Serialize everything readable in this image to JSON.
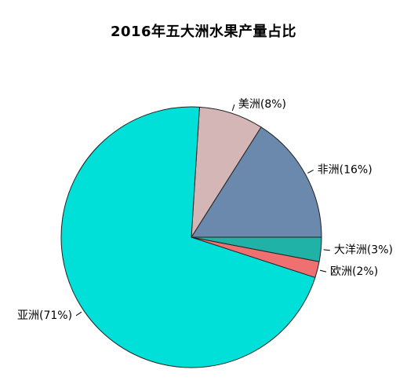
{
  "chart_data": {
    "type": "pie",
    "title": "2016年五大洲水果产量占比",
    "slices": [
      {
        "name": "非洲",
        "label": "非洲(16%)",
        "value": 16,
        "color": "#6A89AD"
      },
      {
        "name": "美洲",
        "label": "美洲(8%)",
        "value": 8,
        "color": "#D4B6B6"
      },
      {
        "name": "亚洲",
        "label": "亚洲(71%)",
        "value": 71,
        "color": "#00E0D8"
      },
      {
        "name": "欧洲",
        "label": "欧洲(2%)",
        "value": 2,
        "color": "#EE7070"
      },
      {
        "name": "大洋洲",
        "label": "大洋洲(3%)",
        "value": 3,
        "color": "#20B2A6"
      }
    ],
    "start_angle_deg": 0,
    "direction": "counterclockwise",
    "legend": "none"
  }
}
